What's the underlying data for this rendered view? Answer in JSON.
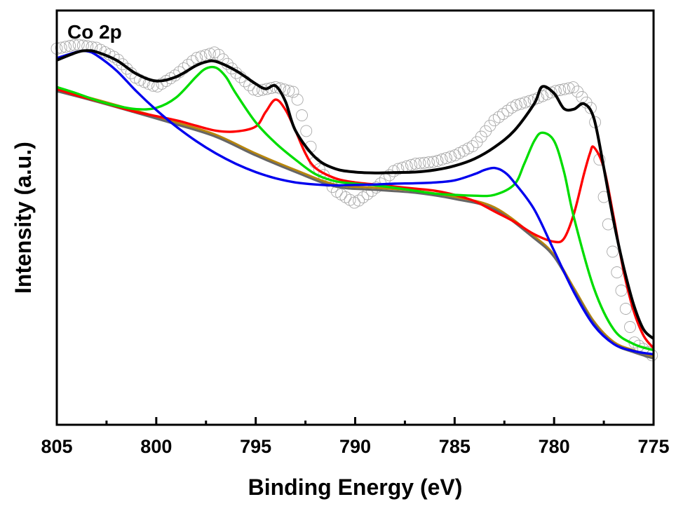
{
  "chart_data": {
    "type": "line",
    "panel_label": "Co 2p",
    "xlabel": "Binding Energy (eV)",
    "ylabel": "Intensity (a.u.)",
    "xlim": [
      805,
      775
    ],
    "x_reversed": true,
    "ylim": [
      0,
      100
    ],
    "y_tick_labels_shown": false,
    "x_ticks": [
      805,
      800,
      795,
      790,
      785,
      780,
      775
    ],
    "x_tick_labels": [
      "805",
      "800",
      "795",
      "790",
      "785",
      "780",
      "775"
    ],
    "grid": false,
    "legend": "none",
    "series": [
      {
        "role": "raw-data",
        "color": "#a8a8a8",
        "marker": "open-circle",
        "x": [
          805,
          804,
          803,
          802,
          801,
          800,
          799,
          798,
          797,
          796,
          795,
          794,
          793,
          792,
          791,
          790,
          789,
          788,
          787,
          786,
          785,
          784,
          783,
          782,
          781,
          780,
          779,
          778,
          777.5,
          777,
          776,
          775
        ],
        "y": [
          90.8,
          91.8,
          91.0,
          88.5,
          83.6,
          81.5,
          84.5,
          88.5,
          90.0,
          85.0,
          80.5,
          81.5,
          80.2,
          63.0,
          56.5,
          53.5,
          57.0,
          61.5,
          63.0,
          63.5,
          65.0,
          67.5,
          73.5,
          77.0,
          78.5,
          80.5,
          81.5,
          75.5,
          55.0,
          40.0,
          20.0,
          16.5
        ]
      },
      {
        "role": "envelope",
        "color": "#000000",
        "x": [
          805,
          804,
          803.5,
          803,
          802,
          801,
          800,
          799,
          798,
          797.5,
          797,
          796,
          795,
          794.5,
          794,
          793.5,
          793,
          792,
          791,
          790,
          789,
          788,
          787,
          786,
          785,
          784,
          783,
          782,
          781,
          780.6,
          780,
          779.5,
          779,
          778.5,
          778,
          777.5,
          777,
          776.5,
          776,
          775.5,
          775
        ],
        "y": [
          88.0,
          89.9,
          90.3,
          90.0,
          88.0,
          84.7,
          83.0,
          84.0,
          86.7,
          87.6,
          87.7,
          85.5,
          82.3,
          81.1,
          81.8,
          78.0,
          71.0,
          64.5,
          61.8,
          61.0,
          60.8,
          60.9,
          61.0,
          61.5,
          62.5,
          64.2,
          67.0,
          71.0,
          77.5,
          81.6,
          80.0,
          76.3,
          76.2,
          77.5,
          74.0,
          62.0,
          49.0,
          38.0,
          29.0,
          23.0,
          20.8
        ]
      },
      {
        "role": "component",
        "color": "#ff0000",
        "x": [
          805,
          804,
          803,
          802,
          801,
          800,
          799,
          798,
          797,
          796,
          795,
          794.5,
          794,
          793.5,
          793,
          792.5,
          792,
          791,
          790,
          789,
          788,
          787,
          786,
          785,
          784,
          783,
          782,
          781,
          780,
          779.5,
          779,
          778.5,
          778.2,
          778,
          777.5,
          777,
          776.5,
          776,
          775.5,
          775
        ],
        "y": [
          81.0,
          79.5,
          78.2,
          76.8,
          75.5,
          74.5,
          73.5,
          72.2,
          71.0,
          70.8,
          72.0,
          75.5,
          78.5,
          76.0,
          71.0,
          65.5,
          62.0,
          59.5,
          58.5,
          58.0,
          57.5,
          57.0,
          56.5,
          55.5,
          54.0,
          51.5,
          49.0,
          46.0,
          44.2,
          45.0,
          51.0,
          60.5,
          65.5,
          67.0,
          62.0,
          50.0,
          37.0,
          27.5,
          21.5,
          18.5
        ]
      },
      {
        "role": "component",
        "color": "#00dd00",
        "x": [
          805,
          804,
          803,
          802,
          801,
          800,
          799,
          798,
          797.5,
          797,
          796.5,
          796,
          795,
          794,
          793,
          792,
          791,
          790,
          789,
          788,
          787,
          786,
          785,
          784,
          783,
          782,
          781.5,
          781,
          780.6,
          780,
          779.5,
          779,
          778,
          777,
          776,
          775
        ],
        "y": [
          81.5,
          80.0,
          78.3,
          77.0,
          76.2,
          76.5,
          79.0,
          84.0,
          86.0,
          86.2,
          84.0,
          80.0,
          73.0,
          68.0,
          64.0,
          60.5,
          58.8,
          58.2,
          57.8,
          57.2,
          56.5,
          55.8,
          55.5,
          55.3,
          55.5,
          58.0,
          63.0,
          68.5,
          70.5,
          68.5,
          61.0,
          50.0,
          33.0,
          23.0,
          19.5,
          18.0
        ]
      },
      {
        "role": "component",
        "color": "#0000ee",
        "x": [
          805,
          804,
          803.5,
          803,
          802,
          801,
          800,
          799,
          798,
          797,
          796,
          795,
          794,
          793,
          792,
          791,
          790,
          789,
          788,
          787,
          786,
          785,
          784,
          783.5,
          783,
          782.5,
          782,
          781,
          780,
          779,
          778,
          777,
          776,
          775
        ],
        "y": [
          88.5,
          90.0,
          90.2,
          89.2,
          85.5,
          80.5,
          76.0,
          72.0,
          68.5,
          65.5,
          63.0,
          61.0,
          59.5,
          58.5,
          58.0,
          57.8,
          57.9,
          58.0,
          58.2,
          58.3,
          58.5,
          59.0,
          60.5,
          61.5,
          62.0,
          61.0,
          58.5,
          52.0,
          42.0,
          32.0,
          24.0,
          19.5,
          17.8,
          17.0
        ]
      },
      {
        "role": "baseline",
        "color": "#b8860b",
        "x": [
          805,
          803,
          801,
          799,
          797,
          795,
          793,
          791,
          789,
          787,
          785,
          783,
          781,
          780,
          779,
          778,
          777,
          776,
          775
        ],
        "y": [
          81.0,
          78.5,
          75.8,
          73.0,
          70.0,
          65.5,
          61.5,
          58.0,
          57.2,
          56.5,
          55.0,
          52.5,
          45.5,
          41.0,
          33.0,
          25.0,
          20.0,
          18.0,
          16.5
        ]
      },
      {
        "role": "baseline",
        "color": "#666666",
        "x": [
          805,
          803,
          801,
          799,
          797,
          795,
          793,
          791,
          789,
          787,
          785,
          783,
          781,
          780,
          779,
          778,
          777,
          776,
          775
        ],
        "y": [
          80.5,
          78.0,
          75.3,
          72.5,
          69.5,
          65.0,
          61.0,
          57.5,
          56.7,
          56.0,
          54.5,
          52.0,
          45.0,
          40.5,
          32.5,
          24.5,
          19.5,
          17.5,
          16.0
        ]
      }
    ]
  }
}
